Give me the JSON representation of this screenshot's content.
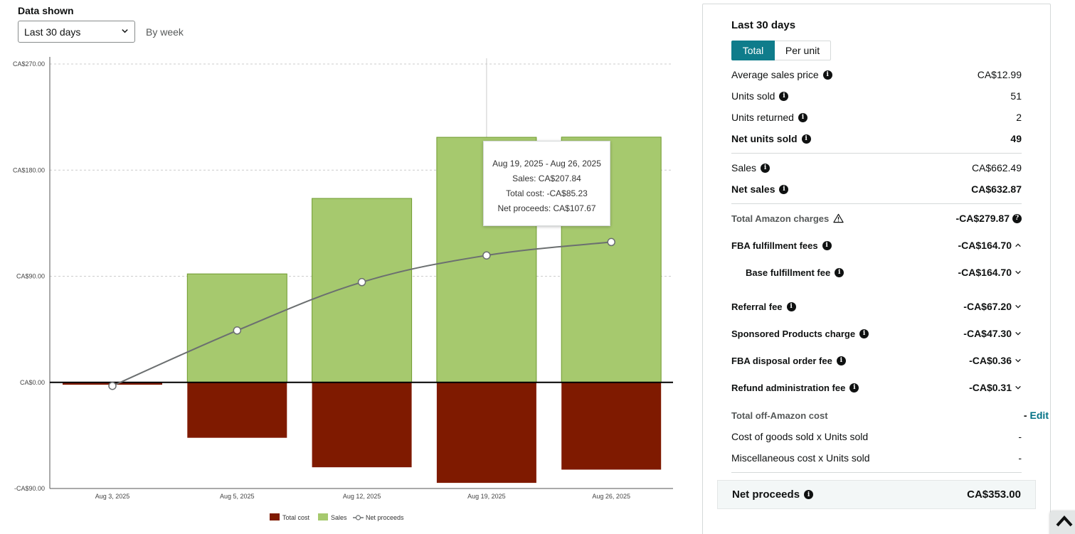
{
  "controls": {
    "data_shown_label": "Data shown",
    "period_value": "Last 30 days",
    "granularity": "By week"
  },
  "chart_data": {
    "type": "bar",
    "categories": [
      "Aug 3, 2025",
      "Aug 5, 2025",
      "Aug 12, 2025",
      "Aug 19, 2025",
      "Aug 26, 2025"
    ],
    "y_ticks": [
      "CA$270.00",
      "CA$180.00",
      "CA$90.00",
      "CA$0.00",
      "-CA$90.00"
    ],
    "ylim": [
      -90,
      270
    ],
    "series": [
      {
        "name": "Total cost",
        "type": "bar",
        "color": "#7f1a00",
        "values": [
          -2,
          -47,
          -72,
          -85.23,
          -74
        ]
      },
      {
        "name": "Sales",
        "type": "bar",
        "color": "#a6c96e",
        "values": [
          0,
          92,
          156,
          207.84,
          208
        ]
      },
      {
        "name": "Net proceeds",
        "type": "line",
        "color": "#6b6f70",
        "values": [
          -3,
          44,
          85,
          107.67,
          119
        ]
      }
    ],
    "legend_position": "bottom-center",
    "grid": true,
    "highlighted_category": "Aug 19, 2025"
  },
  "tooltip": {
    "range": "Aug 19, 2025 - Aug 26, 2025",
    "sales": "Sales: CA$207.84",
    "total_cost": "Total cost: -CA$85.23",
    "net_proceeds": "Net proceeds: CA$107.67"
  },
  "summary": {
    "title": "Last 30 days",
    "toggle_total": "Total",
    "toggle_per_unit": "Per unit",
    "avg_price_label": "Average sales price",
    "avg_price_value": "CA$12.99",
    "units_sold_label": "Units sold",
    "units_sold_value": "51",
    "units_returned_label": "Units returned",
    "units_returned_value": "2",
    "net_units_label": "Net units sold",
    "net_units_value": "49",
    "sales_label": "Sales",
    "sales_value": "CA$662.49",
    "net_sales_label": "Net sales",
    "net_sales_value": "CA$632.87",
    "amazon_charges_label": "Total Amazon charges",
    "amazon_charges_value": "-CA$279.87",
    "fba_fees_label": "FBA fulfillment fees",
    "fba_fees_value": "-CA$164.70",
    "base_fee_label": "Base fulfillment fee",
    "base_fee_value": "-CA$164.70",
    "referral_label": "Referral fee",
    "referral_value": "-CA$67.20",
    "sponsored_label": "Sponsored Products charge",
    "sponsored_value": "-CA$47.30",
    "disposal_label": "FBA disposal order fee",
    "disposal_value": "-CA$0.36",
    "refund_admin_label": "Refund administration fee",
    "refund_admin_value": "-CA$0.31",
    "off_amazon_label": "Total off-Amazon cost",
    "off_amazon_dash": "-",
    "edit_label": "Edit",
    "cogs_label": "Cost of goods sold x Units sold",
    "cogs_value": "-",
    "misc_label": "Miscellaneous cost x Units sold",
    "misc_value": "-",
    "net_proceeds_label": "Net proceeds",
    "net_proceeds_value": "CA$353.00"
  }
}
